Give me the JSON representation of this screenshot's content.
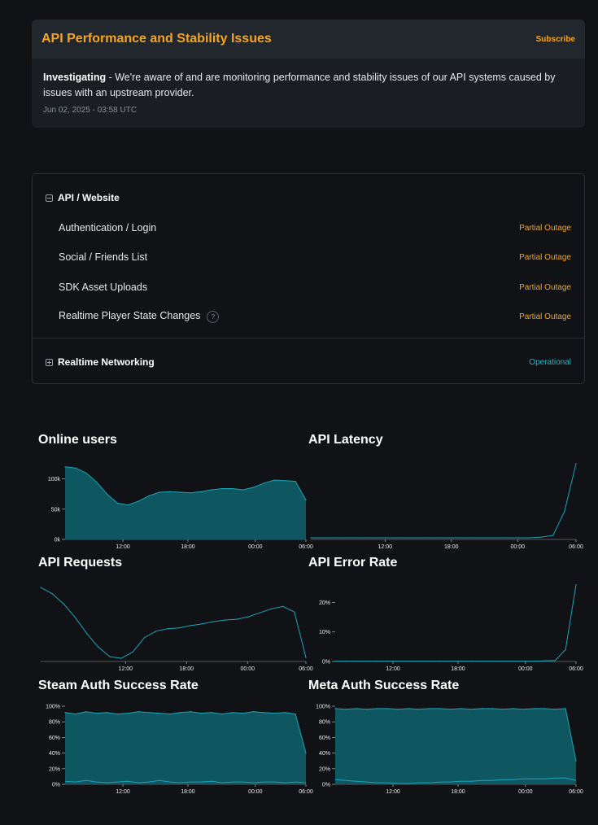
{
  "incident": {
    "title": "API Performance and Stability Issues",
    "subscribe_label": "Subscribe",
    "status_label": "Investigating",
    "message": " - We're aware of and are monitoring performance and stability issues of our API systems caused by issues with an upstream provider.",
    "timestamp": "Jun 02, 2025 - 03:58 UTC"
  },
  "components": {
    "groups": [
      {
        "name": "API / Website",
        "expanded": true,
        "items": [
          {
            "name": "Authentication / Login",
            "status": "Partial Outage"
          },
          {
            "name": "Social / Friends List",
            "status": "Partial Outage"
          },
          {
            "name": "SDK Asset Uploads",
            "status": "Partial Outage"
          },
          {
            "name": "Realtime Player State Changes",
            "status": "Partial Outage",
            "help": "?"
          }
        ]
      },
      {
        "name": "Realtime Networking",
        "expanded": false,
        "status": "Operational"
      }
    ]
  },
  "colors": {
    "accent": "#f5a524",
    "operational": "#2ab5c9",
    "chart_fill": "#0e5660",
    "chart_line": "#1aa5b8"
  },
  "metrics": {
    "online_users": {
      "title": "Online users"
    },
    "api_latency": {
      "title": "API Latency"
    },
    "api_requests": {
      "title": "API Requests"
    },
    "api_error_rate": {
      "title": "API Error Rate"
    },
    "steam_auth": {
      "title": "Steam Auth Success Rate"
    },
    "meta_auth": {
      "title": "Meta Auth Success Rate"
    }
  },
  "chart_data": [
    {
      "id": "online_users",
      "type": "area",
      "x_ticks": [
        "12:00",
        "18:00",
        "00:00",
        "06:00"
      ],
      "y_ticks": [
        "0k",
        "50k",
        "100k"
      ],
      "ylim": [
        0,
        125000
      ],
      "values": [
        120000,
        118000,
        110000,
        95000,
        75000,
        60000,
        57000,
        63000,
        72000,
        78000,
        79000,
        78000,
        77000,
        79000,
        82000,
        84000,
        84000,
        82000,
        86000,
        93000,
        98000,
        97000,
        96000,
        65000
      ]
    },
    {
      "id": "api_latency",
      "type": "line",
      "x_ticks": [
        "12:00",
        "18:00",
        "00:00",
        "06:00"
      ],
      "values": [
        0.02,
        0.02,
        0.02,
        0.02,
        0.02,
        0.02,
        0.02,
        0.02,
        0.02,
        0.02,
        0.02,
        0.02,
        0.02,
        0.02,
        0.02,
        0.02,
        0.02,
        0.02,
        0.02,
        0.02,
        0.03,
        0.05,
        0.35,
        0.95
      ]
    },
    {
      "id": "api_requests",
      "type": "line",
      "x_ticks": [
        "12:00",
        "18:00",
        "00:00",
        "06:00"
      ],
      "values": [
        0.93,
        0.85,
        0.72,
        0.55,
        0.35,
        0.18,
        0.06,
        0.04,
        0.12,
        0.3,
        0.38,
        0.41,
        0.42,
        0.45,
        0.47,
        0.5,
        0.52,
        0.53,
        0.56,
        0.61,
        0.66,
        0.69,
        0.62,
        0.05
      ]
    },
    {
      "id": "api_error_rate",
      "type": "line",
      "x_ticks": [
        "12:00",
        "18:00",
        "00:00",
        "06:00"
      ],
      "y_ticks": [
        "0%",
        "10%",
        "20%"
      ],
      "ylim": [
        0,
        27
      ],
      "values": [
        0.1,
        0.1,
        0.1,
        0.1,
        0.1,
        0.1,
        0.1,
        0.1,
        0.1,
        0.1,
        0.1,
        0.1,
        0.1,
        0.1,
        0.1,
        0.1,
        0.1,
        0.1,
        0.1,
        0.1,
        0.2,
        0.3,
        4,
        26
      ]
    },
    {
      "id": "steam_auth",
      "type": "area",
      "x_ticks": [
        "12:00",
        "18:00",
        "00:00",
        "06:00"
      ],
      "y_ticks": [
        "0%",
        "20%",
        "40%",
        "60%",
        "80%",
        "100%"
      ],
      "ylim": [
        0,
        100
      ],
      "values": [
        92,
        90,
        93,
        91,
        92,
        90,
        91,
        93,
        92,
        91,
        90,
        92,
        93,
        91,
        92,
        90,
        92,
        91,
        93,
        92,
        91,
        92,
        90,
        40
      ],
      "low_values": [
        4,
        3,
        5,
        3,
        2,
        3,
        4,
        2,
        3,
        5,
        3,
        2,
        3,
        3,
        4,
        2,
        3,
        3,
        2,
        3,
        3,
        2,
        3,
        2
      ]
    },
    {
      "id": "meta_auth",
      "type": "area",
      "x_ticks": [
        "12:00",
        "18:00",
        "00:00",
        "06:00"
      ],
      "y_ticks": [
        "0%",
        "20%",
        "40%",
        "60%",
        "80%",
        "100%"
      ],
      "ylim": [
        0,
        100
      ],
      "values": [
        97,
        96,
        97,
        96,
        97,
        97,
        96,
        97,
        96,
        97,
        97,
        96,
        97,
        96,
        97,
        97,
        96,
        97,
        96,
        97,
        97,
        96,
        97,
        30
      ],
      "low_values": [
        6,
        5,
        4,
        3,
        2,
        2,
        1,
        1,
        2,
        2,
        3,
        3,
        4,
        4,
        5,
        5,
        6,
        6,
        7,
        7,
        7,
        8,
        8,
        5
      ]
    }
  ]
}
